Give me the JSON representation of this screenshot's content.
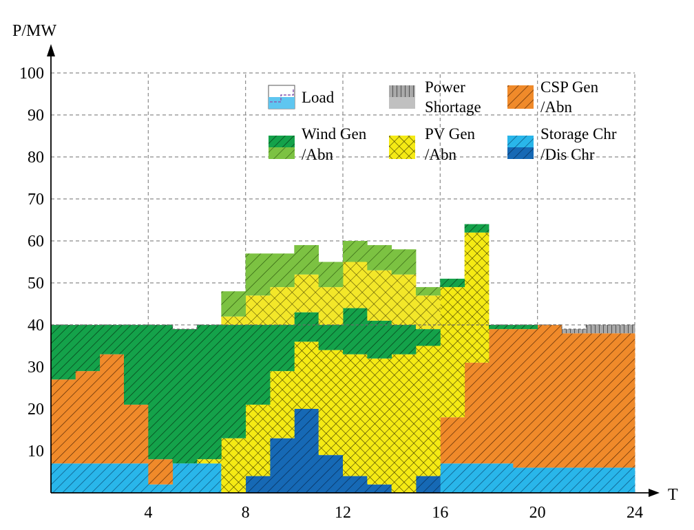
{
  "chart_data": {
    "type": "area",
    "ylabel": "P/MW",
    "xlabel": "T",
    "xlim": [
      0,
      24
    ],
    "ylim": [
      0,
      100
    ],
    "x_ticks": [
      "4",
      "8",
      "12",
      "16",
      "20",
      "24"
    ],
    "x_tick_values": [
      4,
      8,
      12,
      16,
      20,
      24
    ],
    "y_ticks": [
      "10",
      "20",
      "30",
      "40",
      "50",
      "60",
      "70",
      "80",
      "90",
      "100"
    ],
    "y_tick_values": [
      10,
      20,
      30,
      40,
      50,
      60,
      70,
      80,
      90,
      100
    ],
    "grid": true,
    "legend_position": "top-right",
    "legend": [
      {
        "key": "load",
        "lines": [
          "Load"
        ]
      },
      {
        "key": "shortage",
        "lines": [
          "Power",
          "Shortage"
        ]
      },
      {
        "key": "csp",
        "lines": [
          "CSP Gen",
          "/Abn"
        ]
      },
      {
        "key": "wind",
        "lines": [
          "Wind Gen",
          "/Abn"
        ]
      },
      {
        "key": "pv",
        "lines": [
          "PV Gen",
          "/Abn"
        ]
      },
      {
        "key": "storage",
        "lines": [
          "Storage Chr",
          "/Dis Chr"
        ]
      }
    ],
    "hours": [
      1,
      2,
      3,
      4,
      5,
      6,
      7,
      8,
      9,
      10,
      11,
      12,
      13,
      14,
      15,
      16,
      17,
      18,
      19,
      20,
      21,
      22,
      23,
      24
    ],
    "load": [
      40,
      40,
      40,
      40,
      40,
      39,
      40,
      40,
      40,
      40,
      40,
      40,
      40,
      40,
      40,
      40,
      40,
      40,
      40,
      40,
      40,
      39,
      40,
      40
    ],
    "series": [
      {
        "key": "storage_charge",
        "values": [
          7,
          7,
          7,
          7,
          2,
          7,
          7,
          0,
          0,
          0,
          0,
          0,
          0,
          0,
          0,
          0,
          7,
          7,
          7,
          6,
          6,
          6,
          6,
          6
        ]
      },
      {
        "key": "storage_discharge",
        "values": [
          0,
          0,
          0,
          0,
          0,
          0,
          0,
          0,
          4,
          13,
          20,
          9,
          4,
          2,
          0,
          4,
          0,
          0,
          0,
          0,
          0,
          0,
          0,
          0
        ]
      },
      {
        "key": "csp_gen",
        "values": [
          20,
          22,
          26,
          14,
          6,
          0,
          0,
          0,
          0,
          0,
          0,
          0,
          0,
          0,
          0,
          0,
          11,
          24,
          32,
          33,
          34,
          32,
          32,
          32
        ]
      },
      {
        "key": "pv_gen",
        "values": [
          0,
          0,
          0,
          0,
          0,
          0,
          1,
          13,
          17,
          16,
          16,
          25,
          29,
          30,
          33,
          31,
          31,
          31,
          0,
          0,
          0,
          0,
          0,
          0
        ]
      },
      {
        "key": "wind_gen",
        "values": [
          13,
          11,
          7,
          19,
          32,
          32,
          32,
          27,
          19,
          11,
          7,
          6,
          11,
          9,
          7,
          4,
          2,
          2,
          1,
          1,
          0,
          0,
          0,
          0
        ]
      },
      {
        "key": "pv_abn",
        "values": [
          0,
          0,
          0,
          0,
          0,
          0,
          0,
          2,
          7,
          9,
          9,
          9,
          11,
          12,
          12,
          8,
          0,
          0,
          0,
          0,
          0,
          0,
          0,
          0
        ]
      },
      {
        "key": "wind_abn",
        "values": [
          0,
          0,
          0,
          0,
          0,
          0,
          0,
          6,
          10,
          8,
          7,
          6,
          5,
          6,
          6,
          2,
          0,
          0,
          0,
          0,
          0,
          0,
          0,
          0
        ]
      },
      {
        "key": "shortage",
        "values": [
          0,
          0,
          0,
          0,
          0,
          0,
          0,
          0,
          0,
          0,
          0,
          0,
          0,
          0,
          0,
          0,
          0,
          0,
          0,
          0,
          0,
          1,
          2,
          2
        ]
      }
    ],
    "wind_top": [
      40,
      40,
      40,
      40,
      40,
      39,
      40,
      40,
      40,
      40,
      40,
      40,
      40,
      40,
      40,
      40,
      40,
      40,
      40,
      40,
      40,
      39,
      40,
      40
    ],
    "wind_abn_cap_top": [
      40,
      40,
      40,
      40,
      40,
      39,
      40,
      40,
      40,
      40,
      40,
      40,
      40,
      40,
      40,
      40,
      40,
      40,
      40,
      40,
      40,
      39,
      40,
      40
    ]
  },
  "colors": {
    "storage": "#29b6ea",
    "storage_dis": "#1669b5",
    "csp": "#f08a2a",
    "pv": "#f5ea14",
    "wind": "#14a24a",
    "wind_abn": "#7cc242",
    "shortage": "#9a9a9a",
    "load_fill": "#5fc6f0",
    "grid": "#8a8a8a"
  }
}
